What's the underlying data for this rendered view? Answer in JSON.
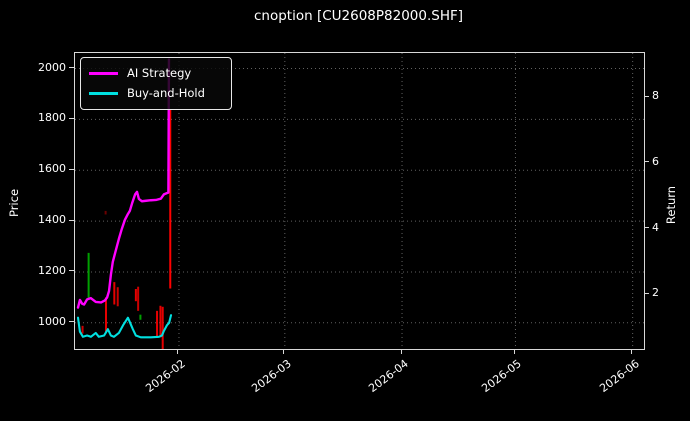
{
  "window": {
    "background": "#000000",
    "text_color": "#ffffff"
  },
  "chart": {
    "title": "cnoption [CU2608P82000.SHF]",
    "ylabel_left": "Price",
    "ylabel_right": "Return"
  },
  "legend": {
    "items": [
      {
        "label": "AI Strategy",
        "color": "#ff00ff"
      },
      {
        "label": "Buy-and-Hold",
        "color": "#00e0e0"
      }
    ]
  },
  "chart_data": {
    "type": "line",
    "subtype": "price-candlesticks-with-strategy-lines",
    "title": "cnoption [CU2608P82000.SHF]",
    "xlabel": "",
    "ylabel_left": "Price",
    "ylabel_right": "Return",
    "grid": {
      "on": true,
      "style": "dotted",
      "color": "rgba(255,255,255,0.38)"
    },
    "spine_color": "#d8d8d8",
    "x_unit": "days since 2026-01-01",
    "x_range_days": [
      3.5,
      154
    ],
    "x_ticks": [
      {
        "day": 31,
        "label": "2026-02"
      },
      {
        "day": 59,
        "label": "2026-03"
      },
      {
        "day": 90,
        "label": "2026-04"
      },
      {
        "day": 120,
        "label": "2026-05"
      },
      {
        "day": 151,
        "label": "2026-06"
      }
    ],
    "price_ticks": [
      1000,
      1200,
      1400,
      1600,
      1800,
      2000
    ],
    "price_range": [
      897,
      2061
    ],
    "return_ticks": [
      2,
      4,
      6,
      8
    ],
    "return_range": [
      0.34,
      9.34
    ],
    "legend_position": "upper-left",
    "series": [
      {
        "name": "AI Strategy",
        "axis": "price",
        "color": "#ff00ff",
        "width": 2.4,
        "points": [
          [
            4.3,
            1060
          ],
          [
            4.8,
            1090
          ],
          [
            5.4,
            1075
          ],
          [
            5.9,
            1072
          ],
          [
            6.7,
            1092
          ],
          [
            7.7,
            1097
          ],
          [
            9.0,
            1082
          ],
          [
            10.4,
            1080
          ],
          [
            11.4,
            1088
          ],
          [
            12.0,
            1100
          ],
          [
            12.5,
            1125
          ],
          [
            13.0,
            1190
          ],
          [
            13.5,
            1240
          ],
          [
            14.3,
            1285
          ],
          [
            15.1,
            1330
          ],
          [
            15.9,
            1370
          ],
          [
            16.7,
            1405
          ],
          [
            17.5,
            1428
          ],
          [
            18.0,
            1440
          ],
          [
            18.6,
            1470
          ],
          [
            19.4,
            1505
          ],
          [
            19.9,
            1515
          ],
          [
            20.4,
            1487
          ],
          [
            21.2,
            1478
          ],
          [
            22.3,
            1480
          ],
          [
            23.6,
            1482
          ],
          [
            24.9,
            1483
          ],
          [
            26.2,
            1488
          ],
          [
            27.0,
            1505
          ],
          [
            27.8,
            1510
          ],
          [
            28.2,
            1512
          ],
          [
            28.35,
            2035
          ]
        ]
      },
      {
        "name": "Buy-and-Hold",
        "axis": "price",
        "color": "#00e0e0",
        "width": 2.1,
        "points": [
          [
            4.3,
            1020
          ],
          [
            4.8,
            965
          ],
          [
            5.6,
            945
          ],
          [
            6.7,
            950
          ],
          [
            7.7,
            945
          ],
          [
            9.0,
            960
          ],
          [
            9.8,
            945
          ],
          [
            11.2,
            950
          ],
          [
            12.2,
            975
          ],
          [
            13.0,
            950
          ],
          [
            13.8,
            945
          ],
          [
            15.1,
            960
          ],
          [
            16.2,
            990
          ],
          [
            17.5,
            1020
          ],
          [
            18.8,
            975
          ],
          [
            19.6,
            950
          ],
          [
            20.9,
            943
          ],
          [
            23.6,
            943
          ],
          [
            25.7,
            945
          ],
          [
            26.5,
            950
          ],
          [
            27.0,
            968
          ],
          [
            27.8,
            990
          ],
          [
            28.4,
            1000
          ],
          [
            28.9,
            1030
          ]
        ]
      }
    ],
    "candles": [
      {
        "day": 5.5,
        "high": 988,
        "low": 958,
        "color": "#cc0000"
      },
      {
        "day": 7.1,
        "high": 1275,
        "low": 1095,
        "color": "#00a000"
      },
      {
        "day": 11.6,
        "high": 1440,
        "low": 1426,
        "color": "#6a0000"
      },
      {
        "day": 11.7,
        "high": 1100,
        "low": 960,
        "color": "#e60000"
      },
      {
        "day": 13.9,
        "high": 1160,
        "low": 1072,
        "color": "#e60000"
      },
      {
        "day": 14.8,
        "high": 1140,
        "low": 1065,
        "color": "#cc0000"
      },
      {
        "day": 19.6,
        "high": 1133,
        "low": 1085,
        "color": "#e60000"
      },
      {
        "day": 20.2,
        "high": 1142,
        "low": 1047,
        "color": "#cc0000"
      },
      {
        "day": 20.8,
        "high": 1032,
        "low": 1012,
        "color": "#00a000"
      },
      {
        "day": 25.2,
        "high": 1047,
        "low": 943,
        "color": "#e60000"
      },
      {
        "day": 26.1,
        "high": 1067,
        "low": 943,
        "color": "#e60000"
      },
      {
        "day": 26.7,
        "high": 1063,
        "low": 895,
        "color": "#e60000"
      },
      {
        "day": 28.7,
        "high": 1840,
        "low": 1135,
        "color": "#ff0000"
      }
    ]
  }
}
